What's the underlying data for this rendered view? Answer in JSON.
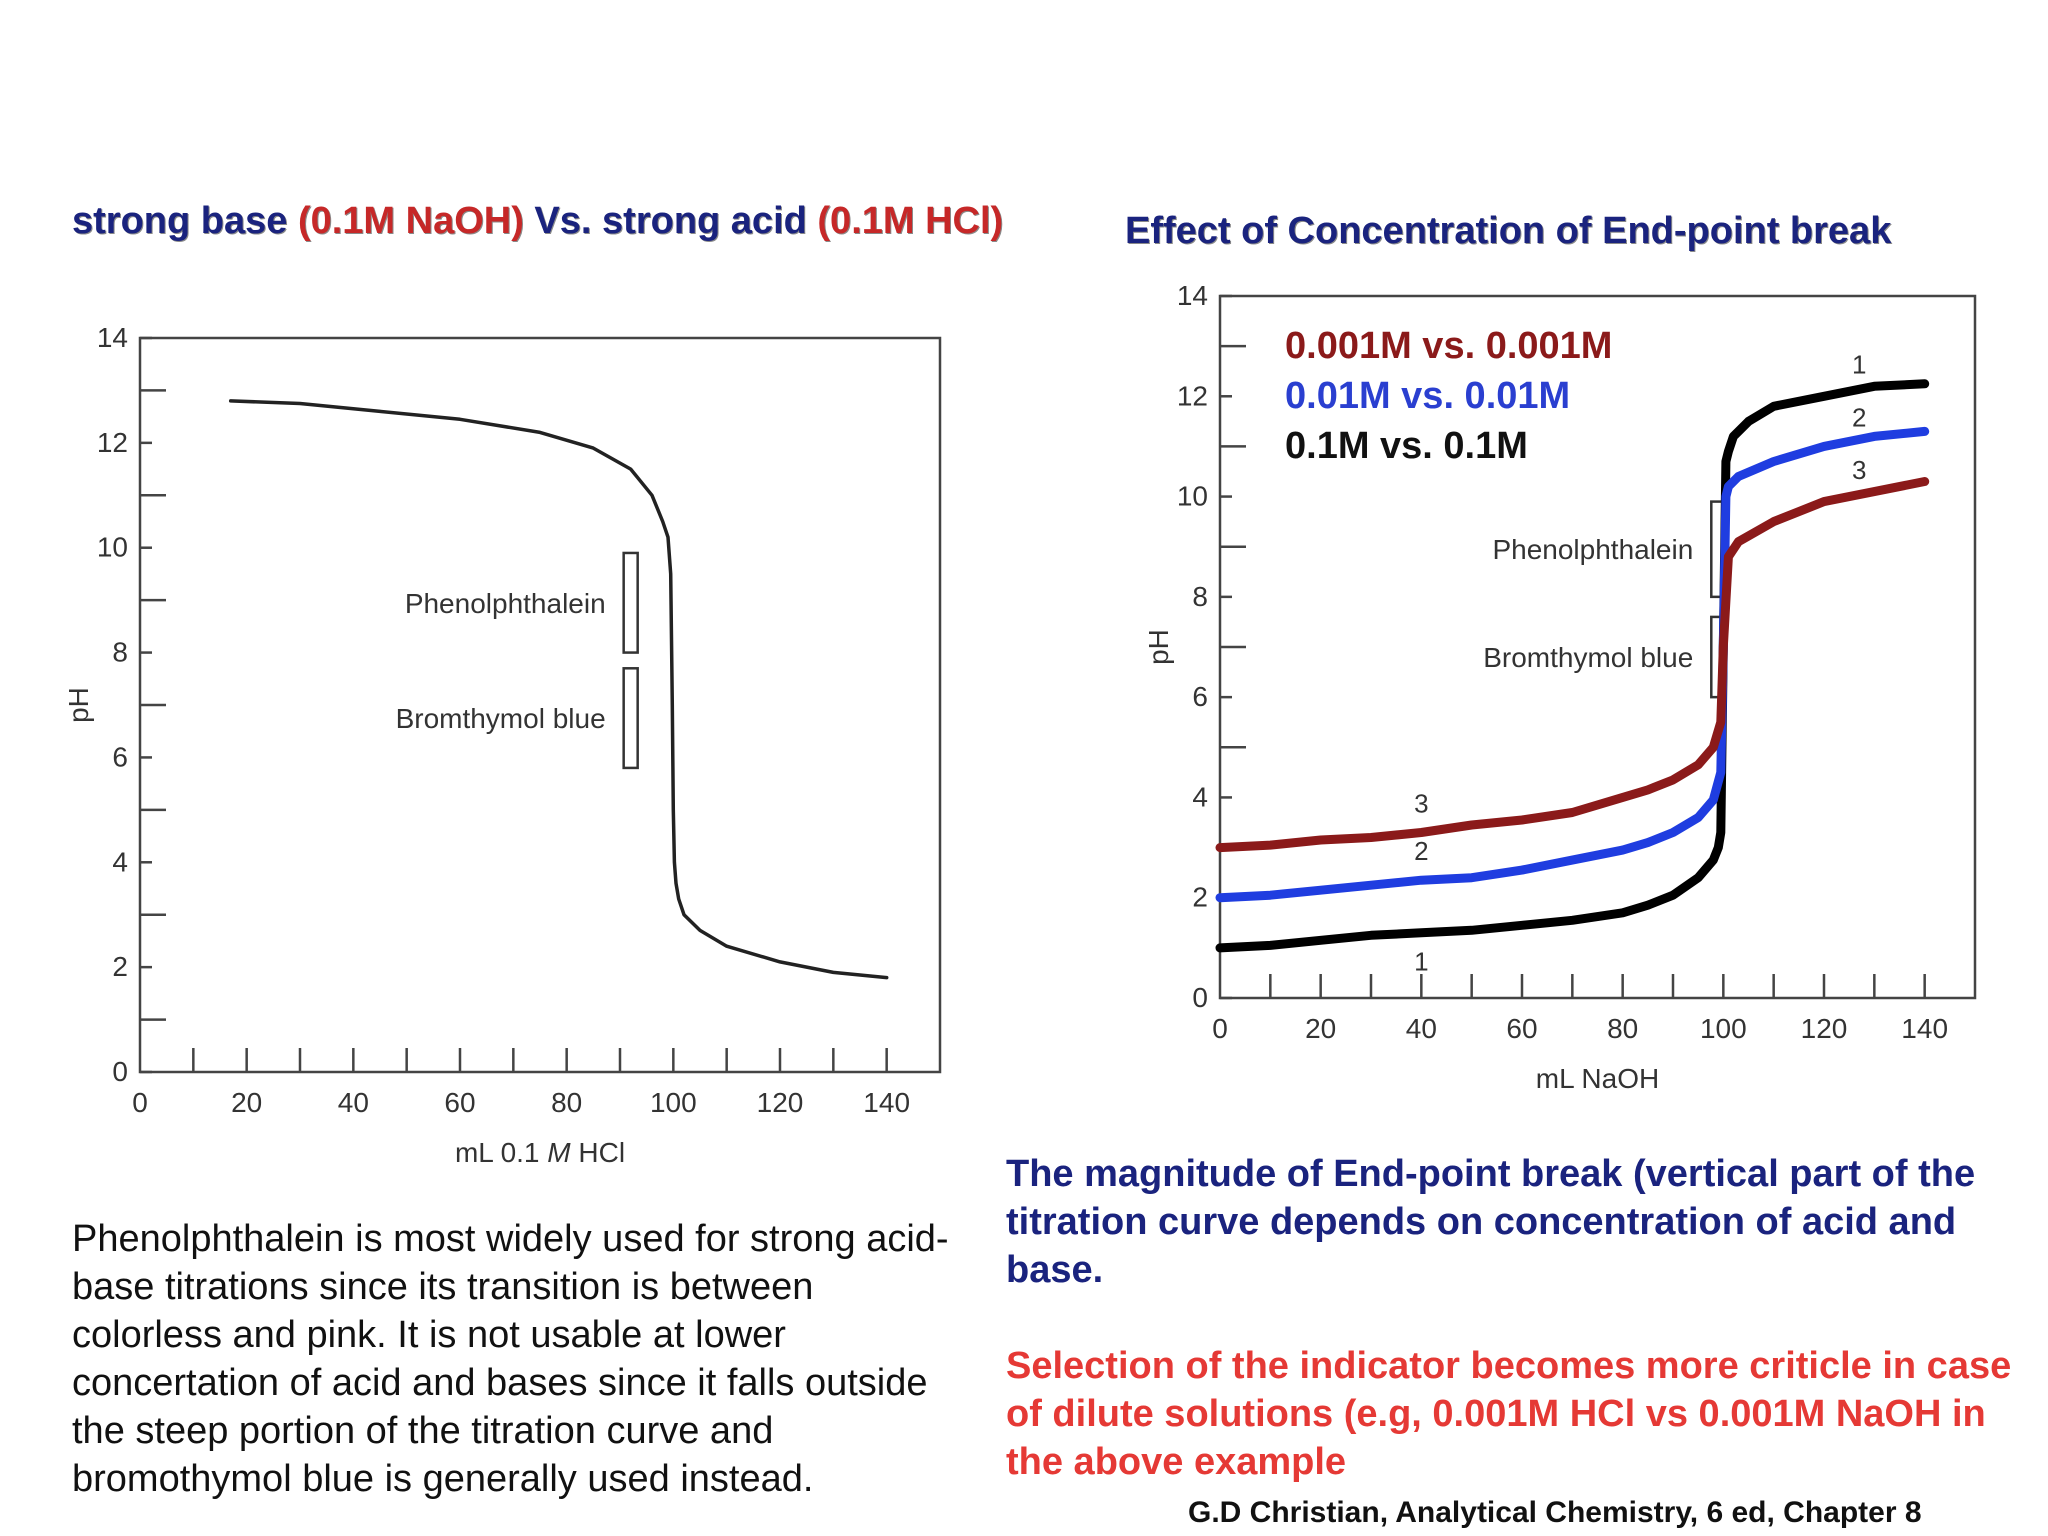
{
  "left_title": {
    "p1": "strong base ",
    "p2": "(0.1M NaOH)",
    "p3": " Vs. strong acid ",
    "p4": "(0.1M HCl)"
  },
  "right_title": "Effect of Concentration of End-point break",
  "chart_data": [
    {
      "type": "line",
      "title": "",
      "xlabel": "mL 0.1 M HCl",
      "ylabel": "pH",
      "xlim": [
        0,
        150
      ],
      "ylim": [
        0,
        14
      ],
      "x_ticks": [
        0,
        20,
        40,
        60,
        80,
        100,
        120,
        140
      ],
      "y_ticks": [
        0,
        2,
        4,
        6,
        8,
        10,
        12,
        14
      ],
      "grid": false,
      "series": [
        {
          "name": "",
          "color": "#222222",
          "x": [
            17,
            30,
            45,
            60,
            75,
            85,
            92,
            96,
            98,
            99,
            99.5,
            99.8,
            100,
            100.2,
            100.5,
            101,
            102,
            105,
            110,
            120,
            130,
            140
          ],
          "y": [
            12.8,
            12.75,
            12.6,
            12.45,
            12.2,
            11.9,
            11.5,
            11.0,
            10.5,
            10.2,
            9.5,
            7.0,
            5.0,
            4.0,
            3.6,
            3.3,
            3.0,
            2.7,
            2.4,
            2.1,
            1.9,
            1.8
          ]
        }
      ],
      "indicators": [
        {
          "label": "Phenolphthalein",
          "x": 92,
          "ph_range": [
            8.0,
            9.9
          ]
        },
        {
          "label": "Bromthymol blue",
          "x": 92,
          "ph_range": [
            5.8,
            7.7
          ]
        }
      ]
    },
    {
      "type": "line",
      "title": "Effect of Concentration of End-point break",
      "xlabel": "mL NaOH",
      "ylabel": "pH",
      "xlim": [
        0,
        150
      ],
      "ylim": [
        0,
        14
      ],
      "x_ticks": [
        0,
        20,
        40,
        60,
        80,
        100,
        120,
        140
      ],
      "y_ticks": [
        0,
        2,
        4,
        6,
        8,
        10,
        12,
        14
      ],
      "grid": false,
      "legend": [
        {
          "label": "0.001M vs. 0.001M",
          "color": "#8b1a1a"
        },
        {
          "label": "0.01M vs. 0.01M",
          "color": "#2a3fd0"
        },
        {
          "label": "0.1M vs. 0.1M",
          "color": "#111111"
        }
      ],
      "series": [
        {
          "name": "1",
          "color": "#000000",
          "x": [
            0,
            10,
            20,
            30,
            40,
            50,
            60,
            70,
            80,
            85,
            90,
            95,
            98,
            99,
            99.5,
            100,
            100.5,
            101,
            102,
            105,
            110,
            120,
            130,
            140
          ],
          "y": [
            1.0,
            1.05,
            1.15,
            1.25,
            1.3,
            1.35,
            1.45,
            1.55,
            1.7,
            1.85,
            2.05,
            2.4,
            2.75,
            3.0,
            3.3,
            7.0,
            10.7,
            10.9,
            11.2,
            11.5,
            11.8,
            12.0,
            12.2,
            12.25
          ]
        },
        {
          "name": "2",
          "color": "#1f3de0",
          "x": [
            0,
            10,
            20,
            30,
            40,
            50,
            60,
            70,
            80,
            85,
            90,
            95,
            98,
            99.5,
            100,
            100.5,
            101,
            103,
            110,
            120,
            130,
            140
          ],
          "y": [
            2.0,
            2.05,
            2.15,
            2.25,
            2.35,
            2.4,
            2.55,
            2.75,
            2.95,
            3.1,
            3.3,
            3.6,
            3.95,
            4.5,
            7.0,
            10.0,
            10.2,
            10.4,
            10.7,
            11.0,
            11.2,
            11.3
          ]
        },
        {
          "name": "3",
          "color": "#8b1a1a",
          "x": [
            0,
            10,
            20,
            30,
            40,
            50,
            60,
            70,
            80,
            85,
            90,
            95,
            98,
            99.5,
            100,
            101,
            103,
            110,
            120,
            130,
            140
          ],
          "y": [
            3.0,
            3.05,
            3.15,
            3.2,
            3.3,
            3.45,
            3.55,
            3.7,
            4.0,
            4.15,
            4.35,
            4.65,
            5.0,
            5.5,
            7.0,
            8.8,
            9.1,
            9.5,
            9.9,
            10.1,
            10.3
          ]
        }
      ],
      "indicators": [
        {
          "label": "Phenolphthalein",
          "x": 99,
          "ph_range": [
            8.0,
            9.9
          ]
        },
        {
          "label": "Bromthymol blue",
          "x": 99,
          "ph_range": [
            6.0,
            7.6
          ]
        }
      ]
    }
  ],
  "text": {
    "left_paragraph": "Phenolphthalein is most widely used for strong acid-base titrations since its transition is between colorless and pink. It is not usable at lower concertation of acid and bases since it falls outside the steep portion of the titration curve and bromothymol blue is generally used instead.",
    "right_note_1": "The magnitude of End-point break (vertical part of the titration curve depends on concentration of acid and base.",
    "right_note_2": "Selection of the indicator becomes more criticle in case of dilute solutions (e.g, 0.001M HCl vs 0.001M NaOH in the above example",
    "citation": "G.D Christian, Analytical Chemistry, 6 ed, Chapter 8"
  }
}
